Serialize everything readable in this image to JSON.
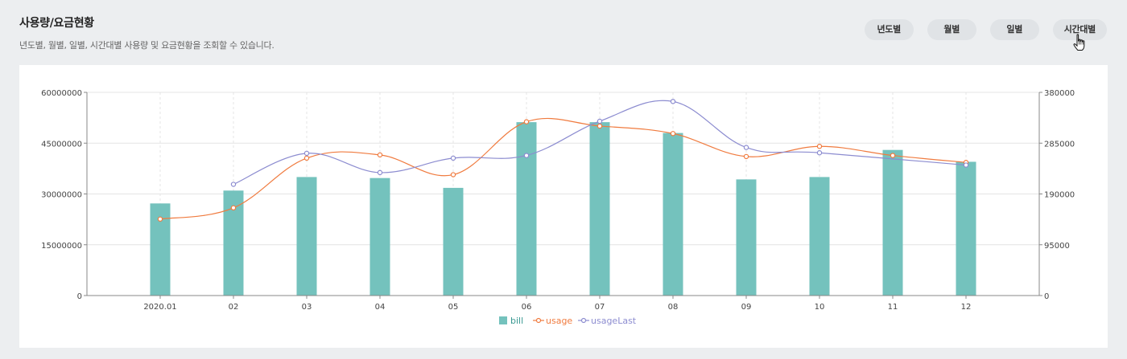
{
  "header": {
    "title": "사용량/요금현황",
    "subtitle": "년도별, 월별, 일별, 시간대별 사용량 및 요금현황을 조회할 수 있습니다."
  },
  "period_buttons": [
    "년도별",
    "월별",
    "일별",
    "시간대별"
  ],
  "cursor_icon": "hand-pointer-icon",
  "colors": {
    "bill": "#74c2bd",
    "usage": "#f07b3f",
    "usageLast": "#8c8cd0",
    "grid": "#e4e4e4",
    "axis": "#888888"
  },
  "chart_data": {
    "type": "bar",
    "categories": [
      "2020.01",
      "02",
      "03",
      "04",
      "05",
      "06",
      "07",
      "08",
      "09",
      "10",
      "11",
      "12"
    ],
    "ylim": [
      0,
      60000000
    ],
    "y_ticks": [
      "0",
      "15000000",
      "30000000",
      "45000000",
      "60000000"
    ],
    "y2lim": [
      0,
      380000
    ],
    "y2_ticks": [
      "0",
      "95000",
      "190000",
      "285000",
      "380000"
    ],
    "grid": true,
    "legend_position": "bottom",
    "series": [
      {
        "name": "bill",
        "type": "bar",
        "axis": "left",
        "values": [
          27200000,
          31000000,
          35000000,
          34700000,
          31800000,
          51200000,
          51200000,
          48000000,
          34300000,
          35000000,
          43000000,
          39500000
        ]
      },
      {
        "name": "usage",
        "type": "line",
        "axis": "right",
        "values": [
          143000,
          164000,
          257000,
          263000,
          226000,
          325000,
          317000,
          303000,
          260000,
          279000,
          262000,
          249000
        ]
      },
      {
        "name": "usageLast",
        "type": "line",
        "axis": "right",
        "values": [
          null,
          208000,
          266000,
          230000,
          257000,
          262000,
          326000,
          363000,
          277000,
          267000,
          null,
          244000
        ]
      }
    ]
  }
}
